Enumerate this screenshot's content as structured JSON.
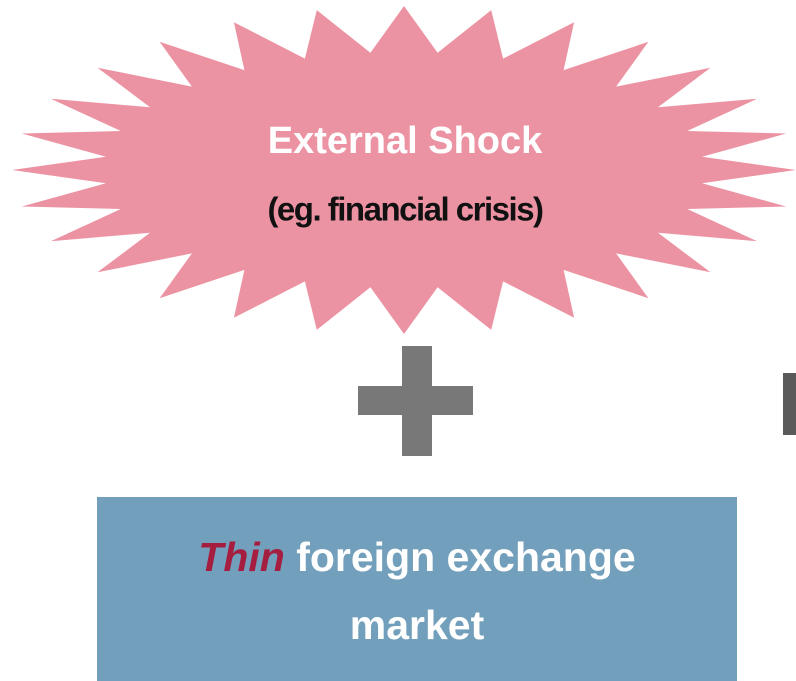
{
  "starburst": {
    "title": "External Shock",
    "subtitle": "(eg. financial crisis)"
  },
  "box": {
    "emphasis": "Thin",
    "line1": "foreign exchange",
    "line2": "market"
  }
}
